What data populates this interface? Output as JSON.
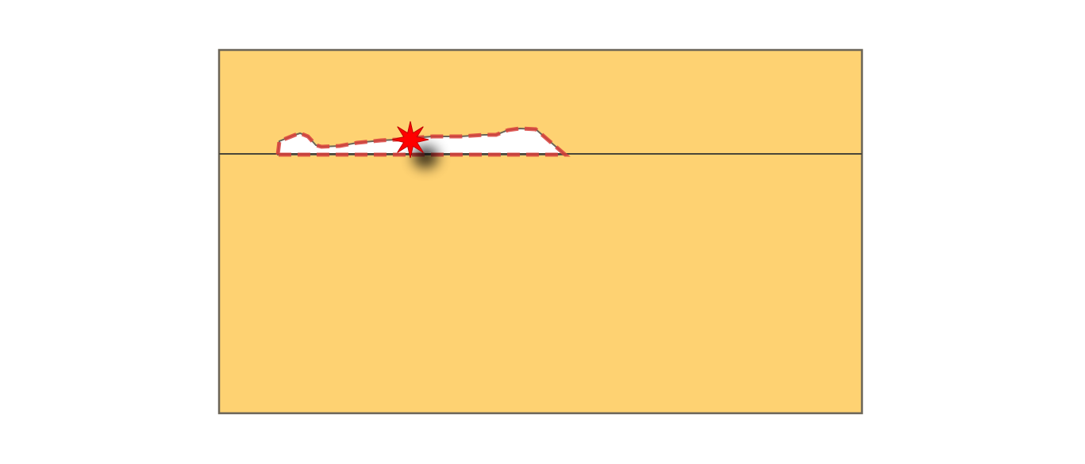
{
  "map": {
    "colors": {
      "land": "#fed272",
      "border": "#6b6558",
      "region_fill": "#ffffff",
      "region_outline": "#d9413c",
      "marker": "#ff0000"
    },
    "marker_icon": "explosion-star-icon"
  }
}
